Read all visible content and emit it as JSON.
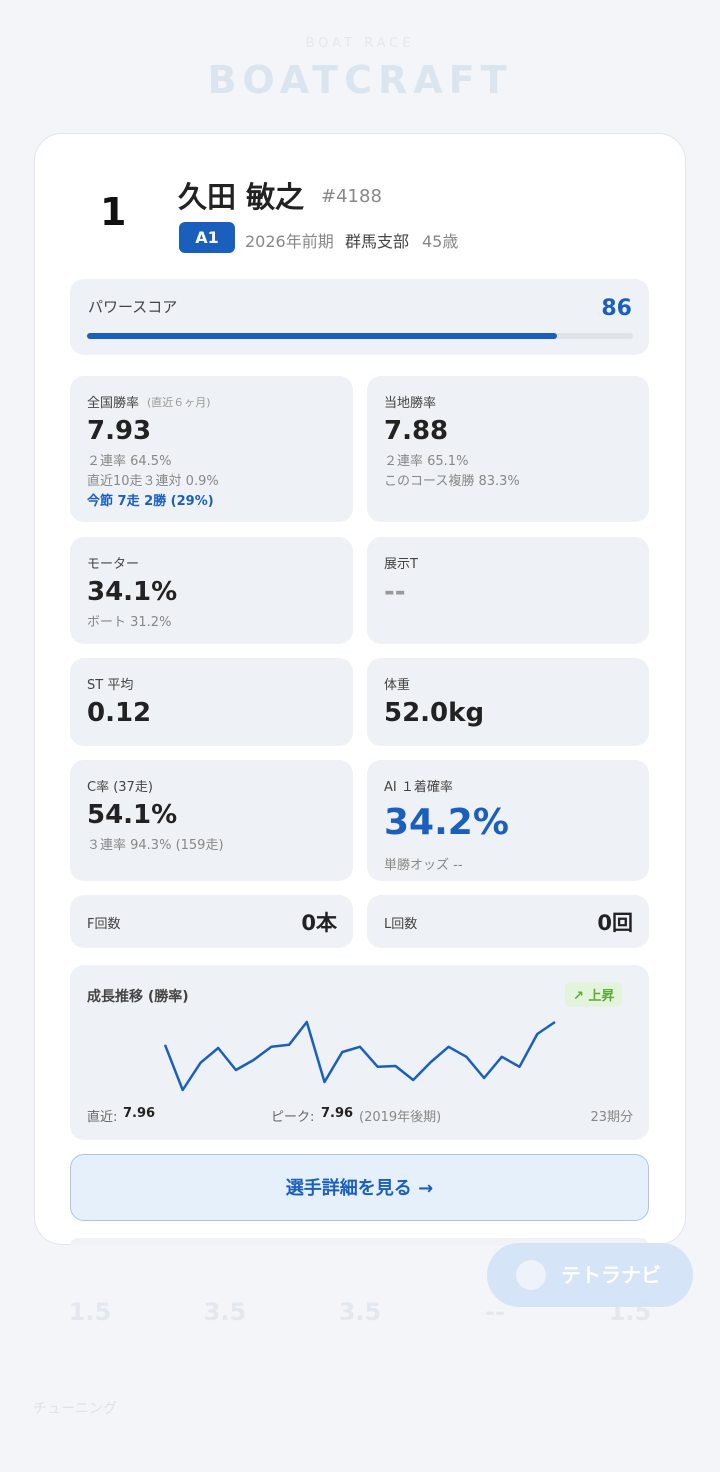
{
  "background": {
    "brand_sub": "BOAT RACE",
    "brand": "BOATCRAFT",
    "gauges": [
      "1.5",
      "3.5",
      "3.5",
      "--",
      "1.5"
    ],
    "fab": "テトラナビ",
    "nav": [
      "チューニング"
    ]
  },
  "player": {
    "frame": "1",
    "name": "久田 敏之",
    "number": "#4188",
    "class": "A1",
    "term": "2026年前期",
    "branch": "群馬支部",
    "age": "45歳"
  },
  "power": {
    "label": "パワースコア",
    "score": 86
  },
  "stats": [
    {
      "label": "全国勝率",
      "note": "(直近６ヶ月)",
      "value": "7.93",
      "lines": [
        "２連率 64.5%",
        "直近10走３連対 0.9%"
      ],
      "highlight": "今節 7走 2勝 (29%)"
    },
    {
      "label": "当地勝率",
      "value": "7.88",
      "lines": [
        "２連率 65.1%",
        "このコース複勝 83.3%"
      ]
    },
    {
      "label": "モーター",
      "value": "34.1%",
      "lines": [
        "ボート 31.2%"
      ]
    },
    {
      "label": "展示T",
      "value": "--"
    },
    {
      "label": "ST 平均",
      "value": "0.12"
    },
    {
      "label": "体重",
      "value": "52.0kg"
    },
    {
      "label": "C率 (37走)",
      "value": "54.1%",
      "lines": [
        "３連率 94.3% (159走)"
      ]
    },
    {
      "label": "AI １着確率",
      "value": "34.2%",
      "lines": [
        "単勝オッズ --"
      ],
      "accent": true
    }
  ],
  "counts": [
    {
      "label": "F回数",
      "value": "0本"
    },
    {
      "label": "L回数",
      "value": "0回"
    }
  ],
  "trend": {
    "title": "成長推移 (勝率)",
    "badge": "↗ 上昇",
    "values": [
      7.39,
      6.26,
      6.94,
      7.31,
      6.76,
      7.01,
      7.34,
      7.39,
      7.96,
      6.46,
      7.21,
      7.34,
      6.84,
      6.86,
      6.51,
      6.96,
      7.34,
      7.09,
      6.56,
      7.09,
      6.84,
      7.66,
      7.96
    ],
    "latest_label": "直近:",
    "latest": 7.96,
    "peak_label": "ピーク:",
    "peak": 7.96,
    "peak_term": "(2019年後期)",
    "periods": "23期分"
  },
  "button": "選手詳細を見る →"
}
